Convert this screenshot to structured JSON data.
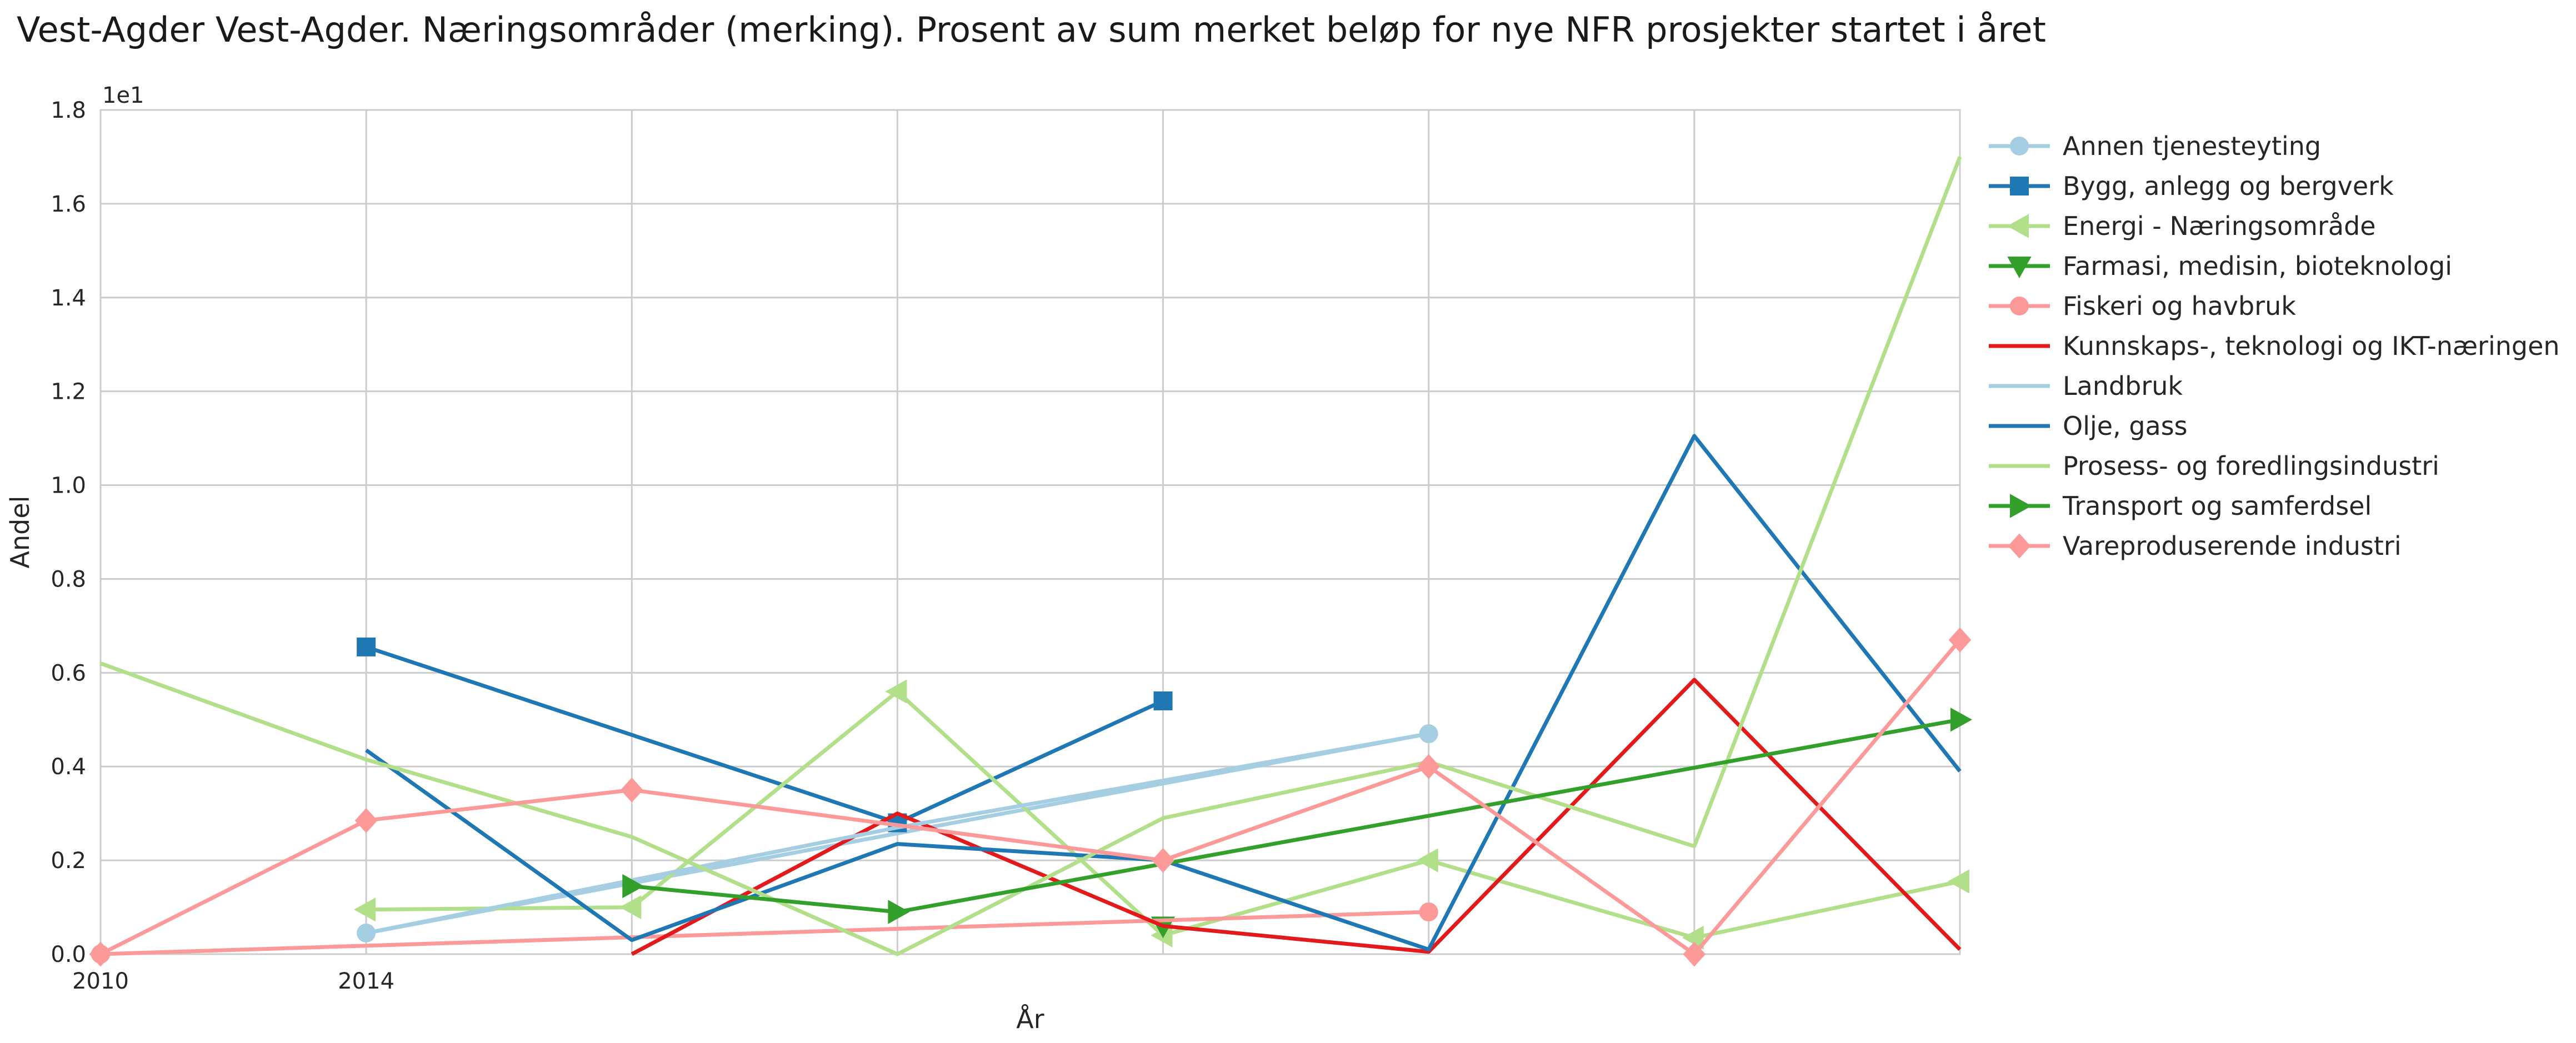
{
  "chart_data": {
    "type": "line",
    "title": "Vest-Agder Vest-Agder. Næringsområder (merking). Prosent av sum merket beløp for nye NFR prosjekter startet i året",
    "xlabel": "År",
    "ylabel": "Andel",
    "y_offset_label": "1e1",
    "x_tick_labels": [
      "2010",
      "2014"
    ],
    "y_ticks": [
      "0.0",
      "0.2",
      "0.4",
      "0.6",
      "0.8",
      "1.0",
      "1.2",
      "1.4",
      "1.6",
      "1.8"
    ],
    "xlim": [
      0,
      7
    ],
    "ylim": [
      0,
      1.8
    ],
    "grid": true,
    "legend_position": "outside-right",
    "series": [
      {
        "name": "Annen tjenesteyting",
        "color": "#a6cee3",
        "marker": "circle",
        "points": [
          [
            1,
            0.045
          ],
          [
            5,
            0.47
          ]
        ]
      },
      {
        "name": "Bygg, anlegg og bergverk",
        "color": "#1f78b4",
        "marker": "square",
        "points": [
          [
            1,
            0.655
          ],
          [
            3,
            0.28
          ],
          [
            4,
            0.54
          ]
        ]
      },
      {
        "name": "Energi - Næringsområde",
        "color": "#b2df8a",
        "marker": "triangle-left",
        "points": [
          [
            1,
            0.095
          ],
          [
            2,
            0.1
          ],
          [
            3,
            0.56
          ],
          [
            4,
            0.04
          ],
          [
            5,
            0.2
          ],
          [
            6,
            0.035
          ],
          [
            7,
            0.155
          ]
        ]
      },
      {
        "name": "Farmasi, medisin, bioteknologi",
        "color": "#33a02c",
        "marker": "triangle-down",
        "points": [
          [
            4,
            0.06
          ]
        ]
      },
      {
        "name": "Fiskeri og havbruk",
        "color": "#fb9a99",
        "marker": "circle",
        "points": [
          [
            0,
            0.0
          ],
          [
            5,
            0.09
          ]
        ]
      },
      {
        "name": "Kunnskaps-, teknologi og IKT-næringen",
        "color": "#e31a1c",
        "marker": "none",
        "points": [
          [
            2,
            0.0
          ],
          [
            3,
            0.3
          ],
          [
            4,
            0.06
          ],
          [
            5,
            0.005
          ],
          [
            6,
            0.585
          ],
          [
            7,
            0.01
          ]
        ]
      },
      {
        "name": "Landbruk",
        "color": "#a6cee3",
        "marker": "none",
        "points": [
          [
            1,
            0.045
          ],
          [
            3,
            0.27
          ],
          [
            5,
            0.47
          ]
        ]
      },
      {
        "name": "Olje, gass",
        "color": "#1f78b4",
        "marker": "none",
        "points": [
          [
            1,
            0.435
          ],
          [
            2,
            0.03
          ],
          [
            3,
            0.235
          ],
          [
            4,
            0.2
          ],
          [
            5,
            0.01
          ],
          [
            6,
            1.105
          ],
          [
            7,
            0.39
          ]
        ]
      },
      {
        "name": "Prosess- og foredlingsindustri",
        "color": "#b2df8a",
        "marker": "none",
        "points": [
          [
            0,
            0.62
          ],
          [
            1,
            0.415
          ],
          [
            2,
            0.25
          ],
          [
            3,
            0.0
          ],
          [
            4,
            0.29
          ],
          [
            5,
            0.41
          ],
          [
            6,
            0.23
          ],
          [
            7,
            1.7
          ]
        ]
      },
      {
        "name": "Transport og samferdsel",
        "color": "#33a02c",
        "marker": "triangle-right",
        "points": [
          [
            2,
            0.145
          ],
          [
            3,
            0.09
          ],
          [
            7,
            0.5
          ]
        ]
      },
      {
        "name": "Vareproduserende industri",
        "color": "#fb9a99",
        "marker": "diamond",
        "points": [
          [
            0,
            0.0
          ],
          [
            1,
            0.285
          ],
          [
            2,
            0.35
          ],
          [
            4,
            0.2
          ],
          [
            5,
            0.4
          ],
          [
            6,
            0.0
          ],
          [
            7,
            0.67
          ]
        ]
      }
    ]
  }
}
